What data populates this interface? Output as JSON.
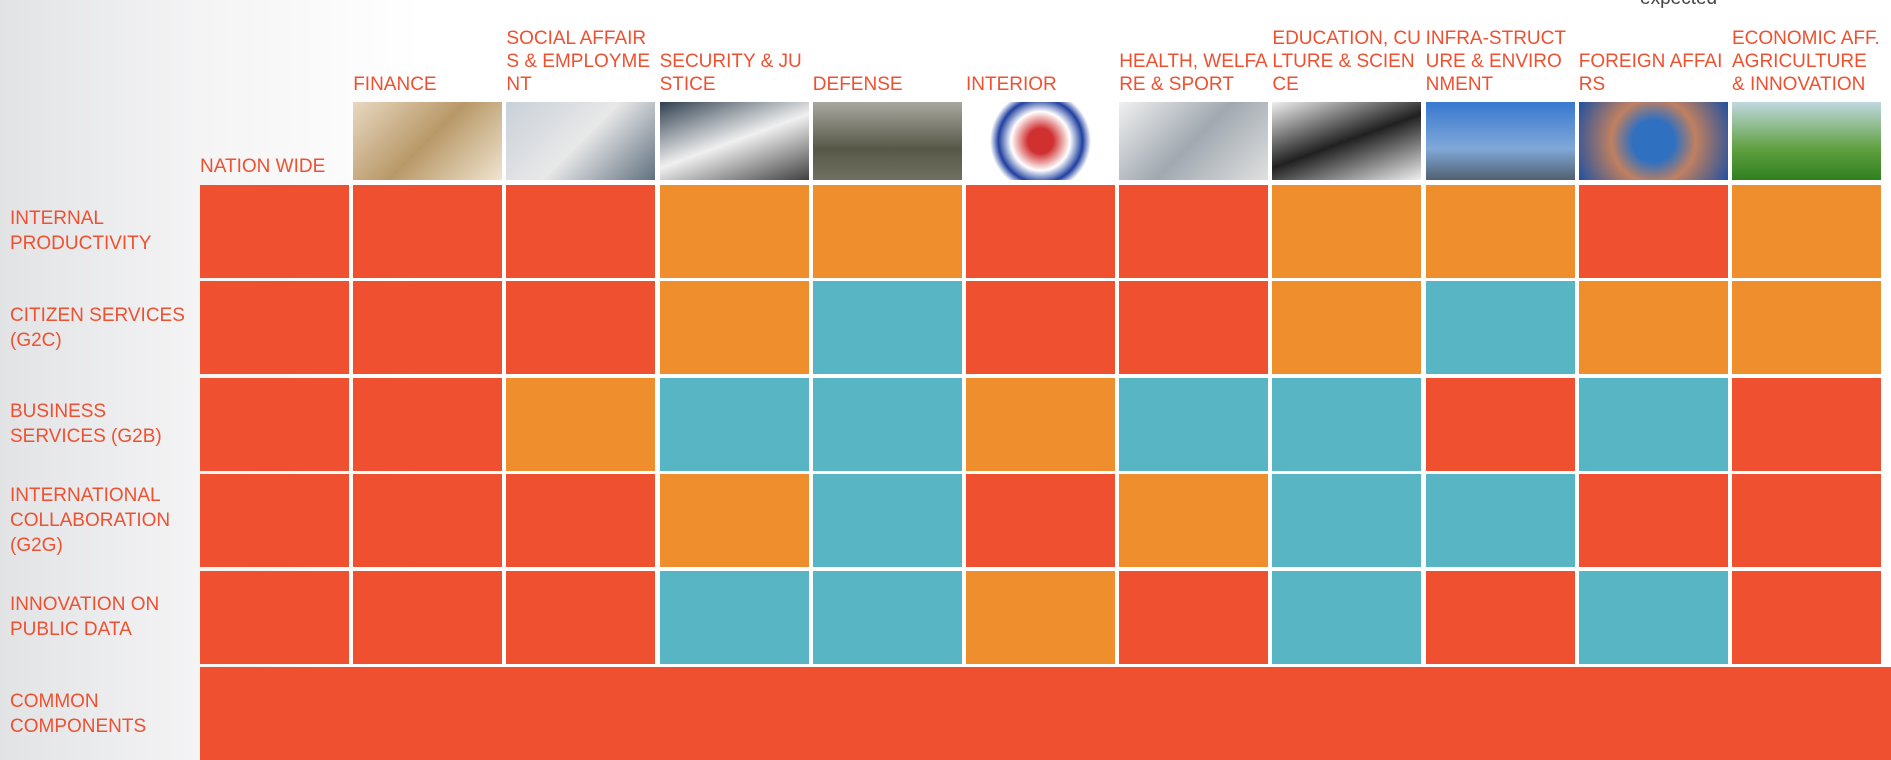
{
  "corner_note": "expected",
  "columns": [
    "NATION WIDE",
    "FINANCE",
    "SOCIAL AFFAIRS & EMPLOYMENT",
    "SECURITY & JUSTICE",
    "DEFENSE",
    "INTERIOR",
    "HEALTH, WELFARE & SPORT",
    "EDUCATION, CULTURE & SCIENCE",
    "INFRA-STRUCTURE & ENVIRONMENT",
    "FOREIGN AFFAIRS",
    "ECONOMIC AFF. AGRICULTURE & INNOVATION"
  ],
  "rows": [
    {
      "label": "INTERNAL PRODUCTIVITY",
      "cells": [
        "#ef5030",
        "#ef5030",
        "#ef5030",
        "#ee8e2c",
        "#ee8e2c",
        "#ef5030",
        "#ef5030",
        "#ee8e2c",
        "#ee8e2c",
        "#ef5030",
        "#ee8e2c"
      ]
    },
    {
      "label": "CITIZEN SERVICES (G2C)",
      "cells": [
        "#ef5030",
        "#ef5030",
        "#ef5030",
        "#ee8e2c",
        "#58b5c3",
        "#ef5030",
        "#ef5030",
        "#ee8e2c",
        "#58b5c3",
        "#ee8e2c",
        "#ee8e2c"
      ]
    },
    {
      "label": "BUSINESS SERVICES (G2B)",
      "cells": [
        "#ef5030",
        "#ef5030",
        "#ee8e2c",
        "#58b5c3",
        "#58b5c3",
        "#ee8e2c",
        "#58b5c3",
        "#58b5c3",
        "#ef5030",
        "#58b5c3",
        "#ef5030"
      ]
    },
    {
      "label": "INTERNATIONAL COLLABORATION (G2G)",
      "cells": [
        "#ef5030",
        "#ef5030",
        "#ef5030",
        "#ee8e2c",
        "#58b5c3",
        "#ef5030",
        "#ee8e2c",
        "#58b5c3",
        "#58b5c3",
        "#ef5030",
        "#ef5030"
      ]
    },
    {
      "label": "INNOVATION ON PUBLIC DATA",
      "cells": [
        "#ef5030",
        "#ef5030",
        "#ef5030",
        "#58b5c3",
        "#58b5c3",
        "#ee8e2c",
        "#ef5030",
        "#58b5c3",
        "#ef5030",
        "#58b5c3",
        "#ef5030"
      ]
    },
    {
      "label": "COMMON COMPONENTS",
      "cells": [
        "#ef5030"
      ]
    }
  ]
}
